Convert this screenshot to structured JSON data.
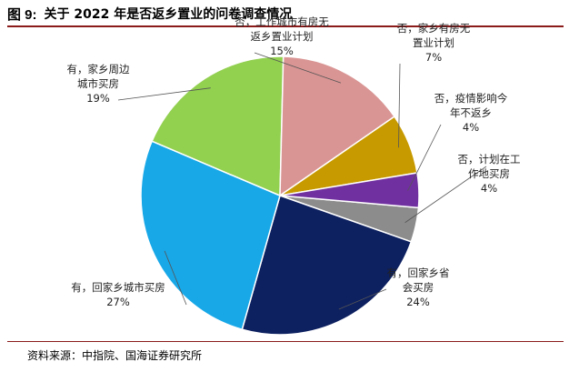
{
  "header": {
    "figure_number": "图 9:",
    "title": "关于 2022 年是否返乡置业的问卷调查情况"
  },
  "source": "资料来源：中指院、国海证券研究所",
  "chart_data": {
    "type": "pie",
    "title": "关于 2022 年是否返乡置业的问卷调查情况",
    "slices": [
      {
        "label_lines": [
          "否，计划在工",
          "作地买房"
        ],
        "value": 4,
        "value_text": "4%",
        "color": "#8C8C8C"
      },
      {
        "label_lines": [
          "有，回家乡省",
          "会买房"
        ],
        "value": 24,
        "value_text": "24%",
        "color": "#0D2060"
      },
      {
        "label_lines": [
          "有，回家乡城市买房"
        ],
        "value": 27,
        "value_text": "27%",
        "color": "#18A8E8"
      },
      {
        "label_lines": [
          "有，家乡周边",
          "城市买房"
        ],
        "value": 19,
        "value_text": "19%",
        "color": "#92D050"
      },
      {
        "label_lines": [
          "否，工作城市有房无",
          "返乡置业计划"
        ],
        "value": 15,
        "value_text": "15%",
        "color": "#D99594"
      },
      {
        "label_lines": [
          "否，家乡有房无",
          "置业计划"
        ],
        "value": 7,
        "value_text": "7%",
        "color": "#C79A00"
      },
      {
        "label_lines": [
          "否，疫情影响今",
          "年不返乡"
        ],
        "value": 4,
        "value_text": "4%",
        "color": "#7030A0"
      }
    ]
  }
}
